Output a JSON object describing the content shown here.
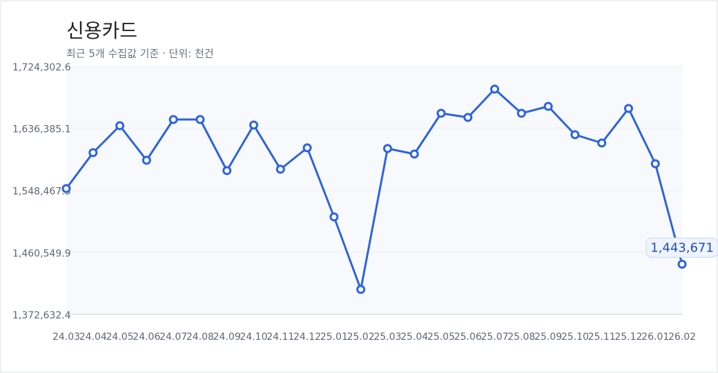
{
  "chart_data": {
    "type": "line",
    "title": "신용카드",
    "subtitle": "최근 5개 수집값 기준 · 단위: 천건",
    "x": [
      "24.03",
      "24.04",
      "24.05",
      "24.06",
      "24.07",
      "24.08",
      "24.09",
      "24.10",
      "24.11",
      "24.12",
      "25.01",
      "25.02",
      "25.03",
      "25.04",
      "25.05",
      "25.06",
      "25.07",
      "25.08",
      "25.09",
      "25.10",
      "25.11",
      "25.12",
      "26.01",
      "26.02"
    ],
    "series": [
      {
        "name": "신용카드",
        "color": "#2b63e0",
        "values": [
          1550920,
          1601859,
          1640063,
          1591083,
          1648879,
          1648879,
          1576389,
          1641042,
          1578348,
          1608716,
          1510756,
          1407898,
          1607736,
          1599899,
          1657696,
          1651818,
          1691982,
          1657696,
          1667492,
          1627328,
          1615573,
          1664553,
          1586185,
          1443671
        ],
        "value_labels": [
          null,
          null,
          null,
          null,
          null,
          null,
          null,
          null,
          null,
          null,
          null,
          null,
          null,
          null,
          null,
          null,
          null,
          null,
          null,
          null,
          null,
          null,
          null,
          "1,443,671"
        ]
      }
    ],
    "ylim": [
      1372632.4,
      1724302.6
    ],
    "yticks": [
      {
        "value": 1372632.4,
        "label": "1,372,632.4"
      },
      {
        "value": 1460549.9,
        "label": "1,460,549.9"
      },
      {
        "value": 1548467.5,
        "label": "1,548,467.5"
      },
      {
        "value": 1636385.1,
        "label": "1,636,385.1"
      },
      {
        "value": 1724302.6,
        "label": "1,724,302.6"
      }
    ],
    "grid": true
  }
}
